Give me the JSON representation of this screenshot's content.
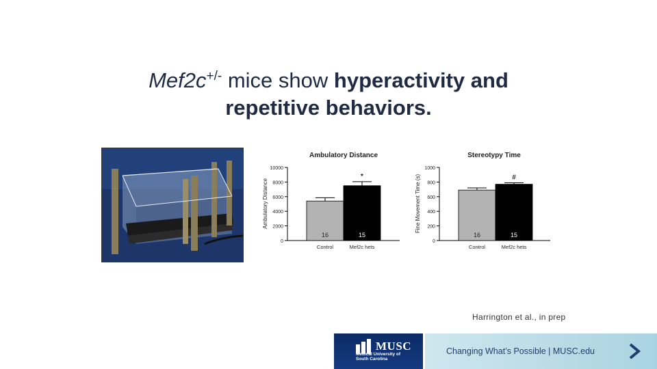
{
  "slide": {
    "title_italic": "Mef2c",
    "title_sup": "+/-",
    "title_plain": " mice show ",
    "title_bold_1": "hyperactivity and",
    "title_bold_2": "repetitive behaviors.",
    "credit": "Harrington et al., in prep"
  },
  "footer": {
    "logo_name": "MUSC",
    "logo_sub": "Medical University of South Carolina",
    "tagline": "Changing What’s Possible  |  MUSC.edu",
    "chevron_icon": "chevron-right-icon"
  },
  "chart_data": [
    {
      "type": "bar",
      "title": "Ambulatory Distance",
      "ylabel": "Ambulatory Distance",
      "xlabel": "",
      "categories": [
        "Control",
        "Mef2c hets"
      ],
      "values": [
        5400,
        7500
      ],
      "errors": [
        450,
        550
      ],
      "n_labels": [
        "16",
        "15"
      ],
      "bar_colors": [
        "#b3b3b3",
        "#000000"
      ],
      "significance": [
        "",
        "*"
      ],
      "ylim": [
        0,
        10000
      ],
      "yticks": [
        "0",
        "2000",
        "4000",
        "6000",
        "8000",
        "10000"
      ]
    },
    {
      "type": "bar",
      "title": "Stereotypy Time",
      "ylabel": "Fine Movement Time (s)",
      "xlabel": "",
      "categories": [
        "Control",
        "Mef2c hets"
      ],
      "values": [
        690,
        770
      ],
      "errors": [
        30,
        20
      ],
      "n_labels": [
        "16",
        "15"
      ],
      "bar_colors": [
        "#b3b3b3",
        "#000000"
      ],
      "significance": [
        "",
        "#"
      ],
      "ylim": [
        0,
        1000
      ],
      "yticks": [
        "0",
        "200",
        "400",
        "600",
        "800",
        "1000"
      ]
    }
  ]
}
